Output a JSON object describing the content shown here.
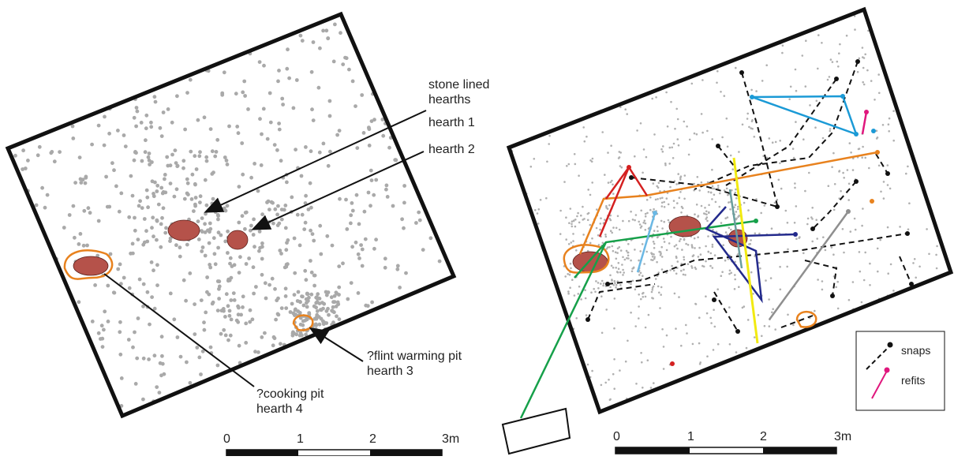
{
  "left_plan": {
    "annotations": [
      {
        "lines": [
          "stone lined",
          "hearths"
        ]
      },
      {
        "lines": [
          "hearth 1"
        ]
      },
      {
        "lines": [
          "hearth 2"
        ]
      },
      {
        "lines": [
          "?flint warming pit",
          "hearth 3"
        ]
      },
      {
        "lines": [
          "?cooking pit",
          "hearth 4"
        ]
      }
    ],
    "scale": [
      "0",
      "1",
      "2",
      "3m"
    ]
  },
  "right_plan": {
    "scale": [
      "0",
      "1",
      "2",
      "3m"
    ],
    "legend": [
      "snaps",
      "refits"
    ]
  }
}
